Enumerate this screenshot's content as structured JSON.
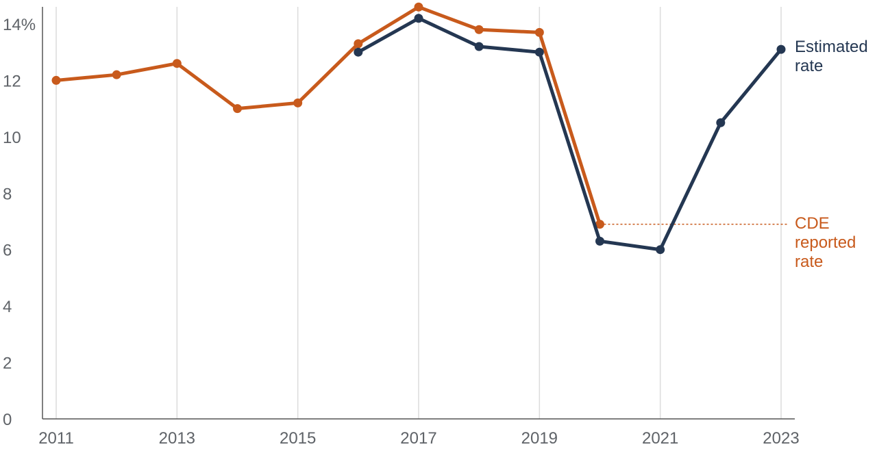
{
  "chart_data": {
    "type": "line",
    "x": [
      2011,
      2012,
      2013,
      2014,
      2015,
      2016,
      2017,
      2018,
      2019,
      2020,
      2021,
      2022,
      2023
    ],
    "x_tick_labels": [
      "2011",
      "2013",
      "2015",
      "2017",
      "2019",
      "2021",
      "2023"
    ],
    "x_tick_values": [
      2011,
      2013,
      2015,
      2017,
      2019,
      2021,
      2023
    ],
    "y_tick_labels": [
      "0",
      "2",
      "4",
      "6",
      "8",
      "10",
      "12",
      "14%"
    ],
    "y_tick_values": [
      0,
      2,
      4,
      6,
      8,
      10,
      12,
      14
    ],
    "ylim": [
      0,
      14.5
    ],
    "xlim": [
      2010.8,
      2023.2
    ],
    "grid": "vertical",
    "series": [
      {
        "key": "cde",
        "label_lines": [
          "CDE",
          "reported",
          "rate"
        ],
        "color": "#c85a1c",
        "values": [
          12.0,
          12.2,
          12.6,
          11.0,
          11.2,
          13.3,
          14.6,
          13.8,
          13.7,
          6.9,
          null,
          null,
          null
        ],
        "reference_line": {
          "value": 6.9,
          "style": "dotted",
          "from_x": 2020,
          "to": "label"
        }
      },
      {
        "key": "estimated",
        "label_lines": [
          "Estimated",
          "rate"
        ],
        "color": "#243752",
        "values": [
          null,
          null,
          null,
          null,
          null,
          13.0,
          14.2,
          13.2,
          13.0,
          6.3,
          6.0,
          10.5,
          13.1
        ]
      }
    ]
  }
}
